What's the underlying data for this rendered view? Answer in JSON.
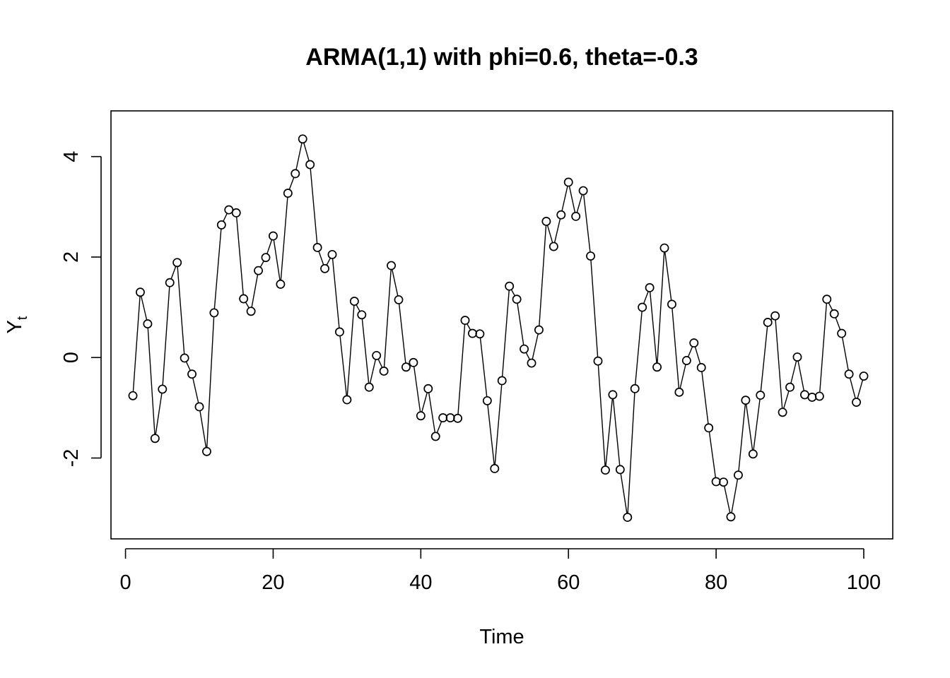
{
  "chart_data": {
    "type": "line",
    "title": "ARMA(1,1) with phi=0.6, theta=-0.3",
    "xlabel": "Time",
    "ylabel": {
      "main": "Y",
      "subscript": "t"
    },
    "xlim": [
      1,
      100
    ],
    "ylim": [
      -3.3,
      4.6
    ],
    "xticks": [
      0,
      20,
      40,
      60,
      80,
      100
    ],
    "yticks": [
      -2,
      0,
      2,
      4
    ],
    "grid": false,
    "marker": "open-circle",
    "series": [
      {
        "x": [
          1,
          2,
          3,
          4,
          5,
          6,
          7,
          8,
          9,
          10,
          11,
          12,
          13,
          14,
          15,
          16,
          17,
          18,
          19,
          20,
          21,
          22,
          23,
          24,
          25,
          26,
          27,
          28,
          29,
          30,
          31,
          32,
          33,
          34,
          35,
          36,
          37,
          38,
          39,
          40,
          41,
          42,
          43,
          44,
          45,
          46,
          47,
          48,
          49,
          50,
          51,
          52,
          53,
          54,
          55,
          56,
          57,
          58,
          59,
          60,
          61,
          62,
          63,
          64,
          65,
          66,
          67,
          68,
          69,
          70,
          71,
          72,
          73,
          74,
          75,
          76,
          77,
          78,
          79,
          80,
          81,
          82,
          83,
          84,
          85,
          86,
          87,
          88,
          89,
          90,
          91,
          92,
          93,
          94,
          95,
          96,
          97,
          98,
          99,
          100
        ],
        "values": [
          -0.76,
          1.3,
          0.67,
          -1.61,
          -0.63,
          1.49,
          1.89,
          -0.01,
          -0.33,
          -0.98,
          -1.87,
          0.89,
          2.64,
          2.94,
          2.88,
          1.17,
          0.92,
          1.73,
          1.99,
          2.42,
          1.46,
          3.27,
          3.66,
          4.35,
          3.84,
          2.19,
          1.77,
          2.05,
          0.51,
          -0.84,
          1.12,
          0.85,
          -0.59,
          0.04,
          -0.27,
          1.83,
          1.15,
          -0.19,
          -0.1,
          -1.16,
          -0.62,
          -1.57,
          -1.2,
          -1.2,
          -1.21,
          0.74,
          0.48,
          0.47,
          -0.86,
          -2.21,
          -0.46,
          1.42,
          1.16,
          0.17,
          -0.11,
          0.55,
          2.71,
          2.21,
          2.84,
          3.49,
          2.81,
          3.32,
          2.02,
          -0.07,
          -2.24,
          -0.74,
          -2.23,
          -3.18,
          -0.62,
          1.0,
          1.39,
          -0.19,
          2.18,
          1.06,
          -0.69,
          -0.06,
          0.29,
          -0.2,
          -1.4,
          -2.47,
          -2.48,
          -3.17,
          -2.34,
          -0.85,
          -1.92,
          -0.75,
          0.7,
          0.83,
          -1.09,
          -0.59,
          0.01,
          -0.74,
          -0.79,
          -0.77,
          1.16,
          0.87,
          0.48,
          -0.33,
          -0.89,
          -0.37
        ]
      }
    ]
  }
}
